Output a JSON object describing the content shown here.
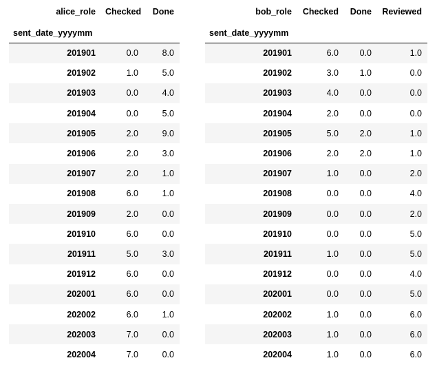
{
  "index_name": "sent_date_yyyymm",
  "alice": {
    "columns_name": "alice_role",
    "columns": [
      "Checked",
      "Done"
    ],
    "rows": [
      {
        "index": "201901",
        "values": [
          "0.0",
          "8.0"
        ]
      },
      {
        "index": "201902",
        "values": [
          "1.0",
          "5.0"
        ]
      },
      {
        "index": "201903",
        "values": [
          "0.0",
          "4.0"
        ]
      },
      {
        "index": "201904",
        "values": [
          "0.0",
          "5.0"
        ]
      },
      {
        "index": "201905",
        "values": [
          "2.0",
          "9.0"
        ]
      },
      {
        "index": "201906",
        "values": [
          "2.0",
          "3.0"
        ]
      },
      {
        "index": "201907",
        "values": [
          "2.0",
          "1.0"
        ]
      },
      {
        "index": "201908",
        "values": [
          "6.0",
          "1.0"
        ]
      },
      {
        "index": "201909",
        "values": [
          "2.0",
          "0.0"
        ]
      },
      {
        "index": "201910",
        "values": [
          "6.0",
          "0.0"
        ]
      },
      {
        "index": "201911",
        "values": [
          "5.0",
          "3.0"
        ]
      },
      {
        "index": "201912",
        "values": [
          "6.0",
          "0.0"
        ]
      },
      {
        "index": "202001",
        "values": [
          "6.0",
          "0.0"
        ]
      },
      {
        "index": "202002",
        "values": [
          "6.0",
          "1.0"
        ]
      },
      {
        "index": "202003",
        "values": [
          "7.0",
          "0.0"
        ]
      },
      {
        "index": "202004",
        "values": [
          "7.0",
          "0.0"
        ]
      }
    ]
  },
  "bob": {
    "columns_name": "bob_role",
    "columns": [
      "Checked",
      "Done",
      "Reviewed"
    ],
    "rows": [
      {
        "index": "201901",
        "values": [
          "6.0",
          "0.0",
          "1.0"
        ]
      },
      {
        "index": "201902",
        "values": [
          "3.0",
          "1.0",
          "0.0"
        ]
      },
      {
        "index": "201903",
        "values": [
          "4.0",
          "0.0",
          "0.0"
        ]
      },
      {
        "index": "201904",
        "values": [
          "2.0",
          "0.0",
          "0.0"
        ]
      },
      {
        "index": "201905",
        "values": [
          "5.0",
          "2.0",
          "1.0"
        ]
      },
      {
        "index": "201906",
        "values": [
          "2.0",
          "2.0",
          "1.0"
        ]
      },
      {
        "index": "201907",
        "values": [
          "1.0",
          "0.0",
          "2.0"
        ]
      },
      {
        "index": "201908",
        "values": [
          "0.0",
          "0.0",
          "4.0"
        ]
      },
      {
        "index": "201909",
        "values": [
          "0.0",
          "0.0",
          "2.0"
        ]
      },
      {
        "index": "201910",
        "values": [
          "0.0",
          "0.0",
          "5.0"
        ]
      },
      {
        "index": "201911",
        "values": [
          "1.0",
          "0.0",
          "5.0"
        ]
      },
      {
        "index": "201912",
        "values": [
          "0.0",
          "0.0",
          "4.0"
        ]
      },
      {
        "index": "202001",
        "values": [
          "0.0",
          "0.0",
          "5.0"
        ]
      },
      {
        "index": "202002",
        "values": [
          "1.0",
          "0.0",
          "6.0"
        ]
      },
      {
        "index": "202003",
        "values": [
          "1.0",
          "0.0",
          "6.0"
        ]
      },
      {
        "index": "202004",
        "values": [
          "1.0",
          "0.0",
          "6.0"
        ]
      }
    ]
  }
}
